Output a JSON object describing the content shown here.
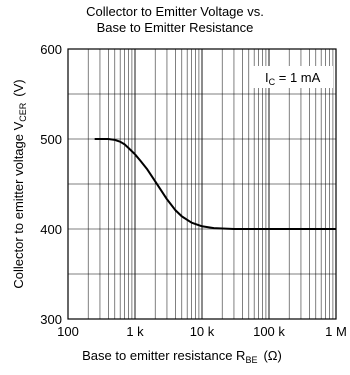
{
  "chart_data": {
    "type": "line",
    "title_line1": "Collector to Emitter Voltage vs.",
    "title_line2": "Base to Emitter Resistance",
    "xlabel": {
      "main": "Base to emitter resistance  R",
      "sub": "BE",
      "unit": "(Ω)"
    },
    "ylabel": {
      "main": "Collector to emitter voltage  V",
      "sub": "CER",
      "unit": "(V)"
    },
    "annotation": {
      "main": "I",
      "sub": "C",
      "rest": " = 1 mA"
    },
    "x_scale": "log",
    "xlim": [
      100,
      1000000
    ],
    "ylim": [
      300,
      600
    ],
    "x_ticks": [
      {
        "value": 100,
        "label": "100"
      },
      {
        "value": 1000,
        "label": "1 k"
      },
      {
        "value": 10000,
        "label": "10 k"
      },
      {
        "value": 100000,
        "label": "100 k"
      },
      {
        "value": 1000000,
        "label": "1 M"
      }
    ],
    "y_ticks": [
      {
        "value": 300,
        "label": "300"
      },
      {
        "value": 400,
        "label": "400"
      },
      {
        "value": 500,
        "label": "500"
      },
      {
        "value": 600,
        "label": "600"
      }
    ],
    "y_minor_step": 50,
    "grid": true,
    "series": [
      {
        "x": [
          250,
          300,
          400,
          500,
          600,
          700,
          800,
          1000,
          1200,
          1500,
          2000,
          2500,
          3000,
          4000,
          5000,
          7000,
          10000,
          15000,
          20000,
          30000,
          40000,
          100000,
          1000000
        ],
        "y": [
          500,
          500,
          500,
          499,
          497,
          494,
          490,
          483,
          476,
          467,
          453,
          442,
          433,
          421,
          414,
          407,
          403,
          401,
          400.5,
          400,
          400,
          400,
          400
        ]
      }
    ],
    "colors": {
      "line": "#000000",
      "grid": "#000000"
    }
  }
}
